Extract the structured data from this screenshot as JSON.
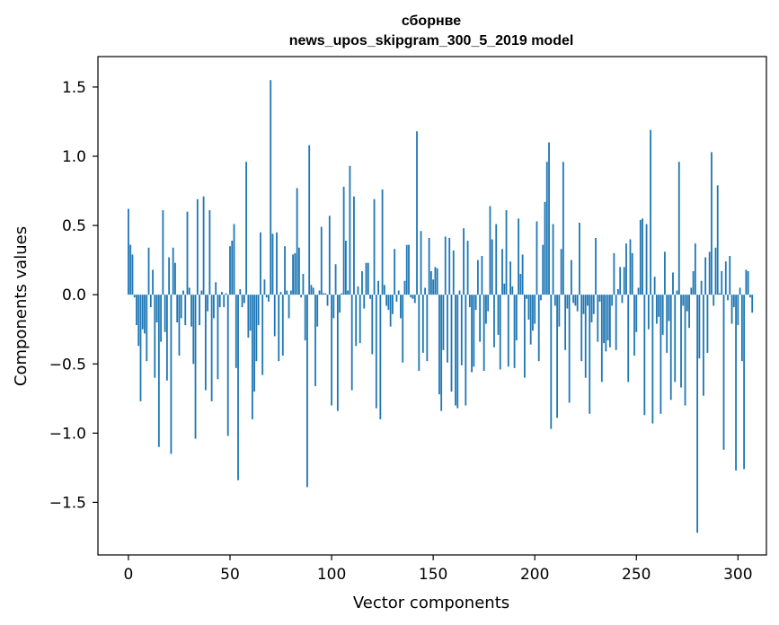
{
  "chart_data": {
    "type": "bar",
    "title_lines": [
      "сборнве",
      "news_upos_skipgram_300_5_2019 model"
    ],
    "xlabel": "Vector components",
    "ylabel": "Components values",
    "xlim": [
      -15,
      314
    ],
    "ylim": [
      -1.88,
      1.72
    ],
    "xticks": [
      0,
      50,
      100,
      150,
      200,
      250,
      300
    ],
    "xtick_labels": [
      "0",
      "50",
      "100",
      "150",
      "200",
      "250",
      "300"
    ],
    "yticks": [
      -1.5,
      -1.0,
      -0.5,
      0.0,
      0.5,
      1.0,
      1.5
    ],
    "ytick_labels": [
      "−1.5",
      "−1.0",
      "−0.5",
      "0.0",
      "0.5",
      "1.0",
      "1.5"
    ],
    "grid": false,
    "bar_color": "#1f77b4",
    "values": [
      0.62,
      0.36,
      0.29,
      -0.02,
      -0.22,
      -0.37,
      -0.77,
      -0.25,
      -0.28,
      -0.48,
      0.34,
      -0.09,
      0.18,
      -0.6,
      -0.2,
      -1.1,
      -0.34,
      0.61,
      -0.27,
      -0.62,
      0.27,
      -1.15,
      0.34,
      0.23,
      -0.2,
      -0.44,
      -0.17,
      0.03,
      -0.22,
      0.6,
      0.05,
      -0.23,
      -0.5,
      -1.04,
      0.69,
      -0.22,
      0.03,
      0.71,
      -0.69,
      -0.12,
      0.61,
      -0.77,
      -0.17,
      0.09,
      -0.61,
      -0.09,
      0.02,
      -0.09,
      0.01,
      -1.02,
      0.35,
      0.39,
      0.51,
      -0.53,
      -1.34,
      0.04,
      -0.09,
      -0.06,
      0.96,
      -0.31,
      -0.26,
      -0.9,
      -0.7,
      -0.48,
      -0.22,
      0.45,
      -0.58,
      0.11,
      -0.02,
      -0.05,
      1.55,
      0.44,
      -0.3,
      0.45,
      -0.48,
      0.02,
      -0.44,
      0.35,
      0.03,
      -0.17,
      0.03,
      0.29,
      0.3,
      0.77,
      0.34,
      -0.02,
      0.15,
      -0.33,
      -1.39,
      1.08,
      0.07,
      0.05,
      -0.66,
      -0.23,
      0.03,
      0.49,
      0.01,
      0.01,
      -0.08,
      0.57,
      -0.8,
      -0.17,
      0.22,
      -0.84,
      -0.13,
      0.01,
      0.78,
      0.39,
      0.03,
      0.93,
      -0.69,
      0.71,
      -0.37,
      0.06,
      -0.35,
      0.17,
      -0.1,
      0.23,
      0.23,
      -0.03,
      -0.43,
      0.69,
      -0.82,
      0.1,
      -0.9,
      0.76,
      0.07,
      -0.08,
      -0.11,
      -0.23,
      -0.14,
      0.33,
      -0.05,
      0.03,
      -0.17,
      -0.49,
      0.1,
      0.36,
      0.36,
      -0.02,
      -0.03,
      -0.06,
      1.18,
      -0.55,
      0.46,
      -0.42,
      0.05,
      -0.48,
      0.41,
      0.17,
      0.11,
      0.2,
      0.19,
      -0.72,
      -0.84,
      -0.4,
      0.42,
      -0.49,
      0.41,
      -0.7,
      0.32,
      -0.8,
      -0.82,
      0.03,
      -0.51,
      0.48,
      -0.8,
      0.39,
      -0.09,
      -0.56,
      -0.52,
      -0.11,
      0.25,
      -0.34,
      0.28,
      -0.55,
      -0.21,
      -0.12,
      0.64,
      0.4,
      -0.38,
      0.51,
      -0.29,
      -0.54,
      0.33,
      0.08,
      0.61,
      -0.52,
      0.24,
      0.06,
      -0.53,
      -0.33,
      0.55,
      0.15,
      0.29,
      -0.6,
      -0.03,
      -0.18,
      -0.36,
      -0.26,
      -0.21,
      0.53,
      -0.48,
      -0.04,
      0.36,
      0.67,
      0.96,
      1.1,
      -0.97,
      0.51,
      -0.08,
      -0.89,
      -0.23,
      0.33,
      0.96,
      -0.4,
      -0.1,
      -0.78,
      0.25,
      -0.06,
      -0.08,
      -0.12,
      0.52,
      -0.48,
      -0.14,
      -0.6,
      -0.08,
      -0.86,
      -0.2,
      -0.14,
      0.41,
      -0.34,
      -0.05,
      -0.63,
      -0.35,
      -0.41,
      -0.33,
      -0.38,
      -0.08,
      0.3,
      -0.4,
      0.04,
      0.2,
      -0.06,
      0.2,
      0.37,
      -0.63,
      0.4,
      0.3,
      -0.44,
      -0.27,
      0.05,
      0.54,
      0.55,
      -0.87,
      0.51,
      -0.25,
      1.19,
      -0.93,
      0.13,
      -0.21,
      -0.16,
      -0.86,
      -0.29,
      0.31,
      -0.42,
      -0.19,
      -0.76,
      0.16,
      -0.63,
      0.03,
      0.96,
      -0.67,
      -0.08,
      -0.8,
      -0.12,
      -0.24,
      0.05,
      0.17,
      0.37,
      -1.72,
      -0.46,
      0.1,
      -0.73,
      0.27,
      -0.42,
      0.31,
      1.03,
      -0.08,
      0.34,
      0.79,
      0.01,
      0.17,
      -1.12,
      0.24,
      -0.04,
      0.28,
      -0.21,
      -0.09,
      -1.27,
      -0.22,
      0.05,
      -0.48,
      -1.26,
      0.18,
      0.17,
      -0.02,
      -0.13
    ]
  }
}
